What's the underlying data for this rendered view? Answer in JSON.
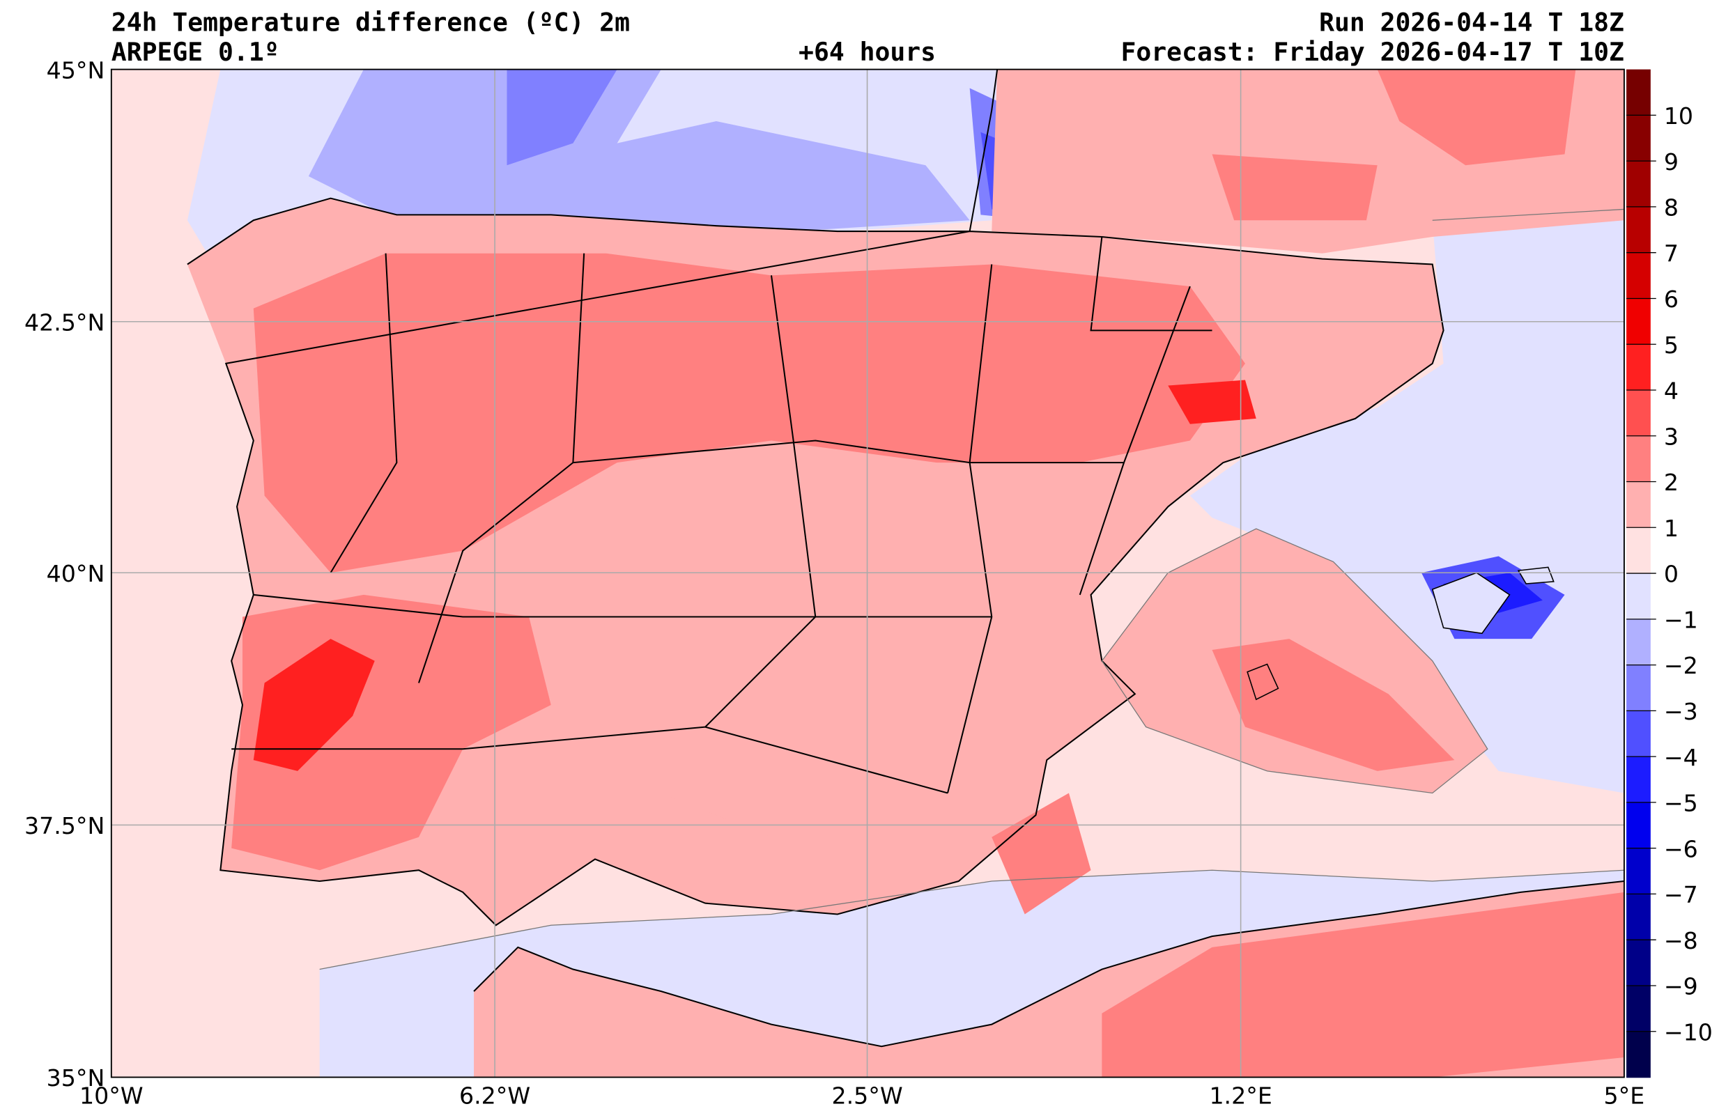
{
  "header": {
    "title": "24h Temperature difference (ºC) 2m",
    "model": "ARPEGE 0.1º",
    "lead_time": "+64 hours",
    "run": "Run 2026-04-14 T 18Z",
    "forecast": "Forecast: Friday 2026-04-17 T 10Z"
  },
  "axes": {
    "lon_labels": [
      "10°W",
      "6.2°W",
      "2.5°W",
      "1.2°E",
      "5°E"
    ],
    "lat_labels": [
      "45°N",
      "42.5°N",
      "40°N",
      "37.5°N",
      "35°N"
    ],
    "lon_values": [
      -10,
      -6.2,
      -2.5,
      1.2,
      5
    ],
    "lat_values": [
      45,
      42.5,
      40,
      37.5,
      35
    ]
  },
  "colorbar": {
    "labels": [
      "10",
      "9",
      "8",
      "7",
      "6",
      "5",
      "4",
      "3",
      "2",
      "1",
      "0",
      "−1",
      "−2",
      "−3",
      "−4",
      "−5",
      "−6",
      "−7",
      "−8",
      "−9",
      "−10"
    ],
    "colors": [
      "#760000",
      "#880000",
      "#a00000",
      "#b80000",
      "#d50000",
      "#f00000",
      "#ff2020",
      "#ff5050",
      "#ff8080",
      "#ffb0b0",
      "#ffe1e1",
      "#e1e1ff",
      "#b0b0ff",
      "#8080ff",
      "#5050ff",
      "#1c1cff",
      "#0000ee",
      "#0000cc",
      "#0000aa",
      "#000088",
      "#000066",
      "#00004c"
    ]
  }
}
